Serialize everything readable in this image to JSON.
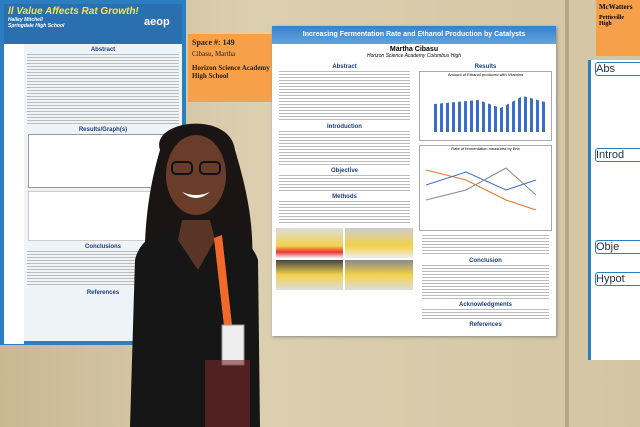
{
  "left_poster": {
    "title": "ll Value Affects Rat Growth!",
    "author": "Hailey Mitchell",
    "school": "Springdale High School",
    "logo": "aeop",
    "sections": [
      "Abstract",
      "Results/Graph(s)",
      "Conclusions",
      "References"
    ]
  },
  "space_card": {
    "space": "Space #: 149",
    "name": "Cibasu, Martha",
    "school": "Horizon Science Academy High School"
  },
  "main_poster": {
    "title": "Increasing Fermentation Rate and Ethanol Production by Catalysts",
    "author": "Martha Cibasu",
    "school": "Horizon Science Academy Columbus High",
    "sections_left": [
      "Abstract",
      "Introduction",
      "Objective",
      "Methods"
    ],
    "sections_right": [
      "Results",
      "Conclusion",
      "Acknowledgments",
      "References"
    ],
    "chart_titles": [
      "Amount of Ethanol produced with Vitamins",
      "Rate of fermentation measured by Brix"
    ]
  },
  "right_card": {
    "name": "McWatters",
    "school": "Pettisville High"
  },
  "right_poster": {
    "sections": [
      "Abs",
      "Introd",
      "Obje",
      "Hypot"
    ]
  }
}
